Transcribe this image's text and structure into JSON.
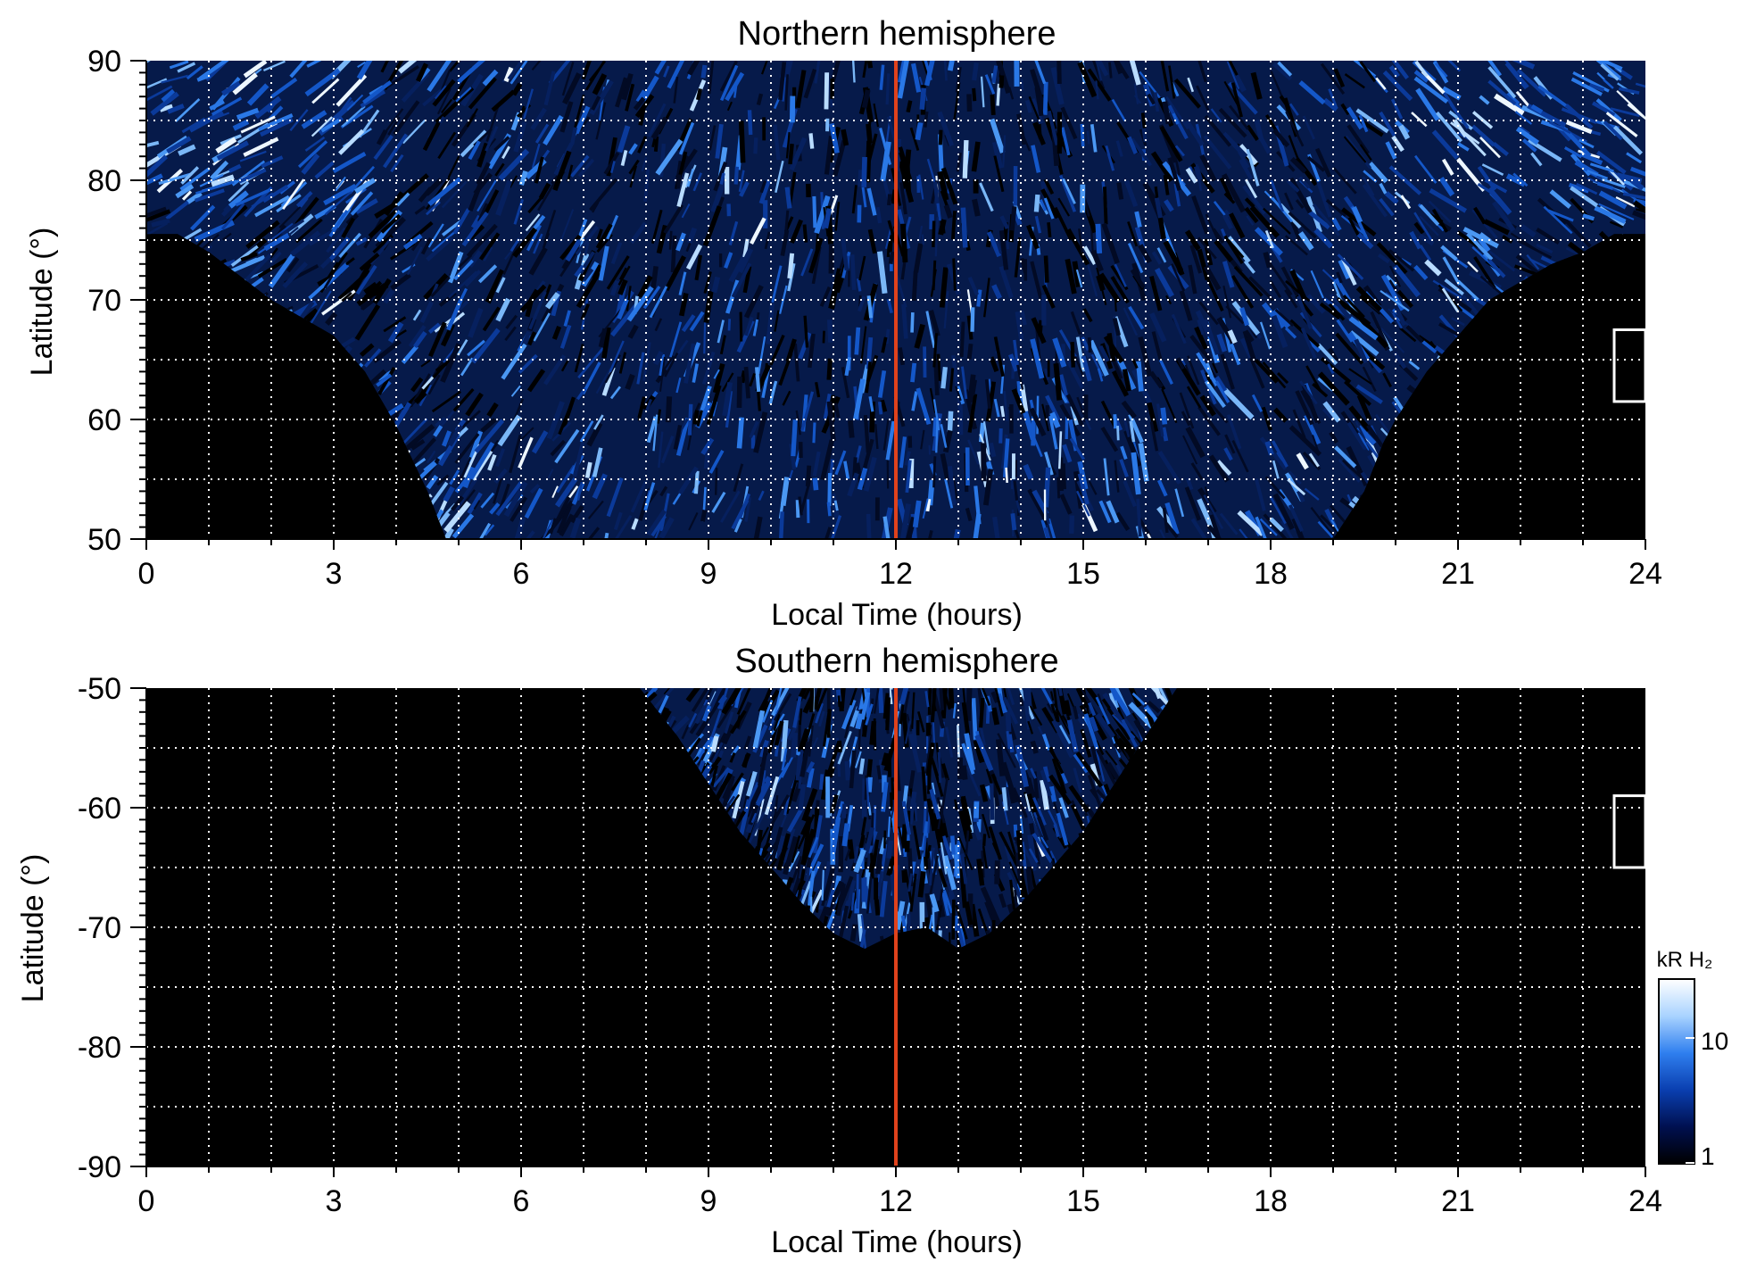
{
  "chart_data": [
    {
      "type": "heatmap",
      "title": "Northern hemisphere",
      "xlabel": "Local Time (hours)",
      "ylabel": "Latitude (°)",
      "xlim": [
        0,
        24
      ],
      "ylim": [
        50,
        90
      ],
      "xticks": [
        0,
        3,
        6,
        9,
        12,
        15,
        18,
        21,
        24
      ],
      "yticks": [
        50,
        60,
        70,
        80,
        90
      ],
      "x_grid": [
        1,
        2,
        3,
        4,
        5,
        6,
        7,
        8,
        9,
        10,
        11,
        12,
        13,
        14,
        15,
        16,
        17,
        18,
        19,
        20,
        21,
        22,
        23
      ],
      "y_grid": [
        55,
        60,
        65,
        70,
        75,
        80,
        85
      ],
      "grid": true,
      "reference_line": {
        "x": 12,
        "color": "#e0421c"
      },
      "coverage_boundary": {
        "lt": [
          0,
          0.5,
          1,
          1.5,
          2,
          2.5,
          3,
          3.5,
          4,
          4.5,
          4.8,
          5,
          6,
          8,
          10,
          12,
          14,
          16,
          18,
          19,
          19.5,
          19.8,
          20,
          20.5,
          21,
          21.5,
          22,
          22.5,
          23,
          23.5,
          24
        ],
        "lat": [
          75.5,
          75.5,
          74,
          72,
          70,
          68.5,
          67,
          64,
          59.5,
          54,
          50,
          50,
          50,
          50,
          50,
          50,
          50,
          50,
          50,
          50,
          54,
          58,
          60,
          64,
          67,
          70,
          71.5,
          73,
          74,
          75.5,
          75.5
        ]
      },
      "bright_region": "high latitudes near 0 and 22-24 LT",
      "marker_box": {
        "x": [
          23.5,
          24
        ],
        "y": [
          61.5,
          67.5
        ]
      }
    },
    {
      "type": "heatmap",
      "title": "Southern hemisphere",
      "xlabel": "Local Time (hours)",
      "ylabel": "Latitude (°)",
      "xlim": [
        0,
        24
      ],
      "ylim": [
        -90,
        -50
      ],
      "xticks": [
        0,
        3,
        6,
        9,
        12,
        15,
        18,
        21,
        24
      ],
      "yticks": [
        -90,
        -80,
        -70,
        -60,
        -50
      ],
      "x_grid": [
        1,
        2,
        3,
        4,
        5,
        6,
        7,
        8,
        9,
        10,
        11,
        12,
        13,
        14,
        15,
        16,
        17,
        18,
        19,
        20,
        21,
        22,
        23
      ],
      "y_grid": [
        -85,
        -80,
        -75,
        -70,
        -65,
        -60,
        -55
      ],
      "grid": true,
      "reference_line": {
        "x": 12,
        "color": "#e0421c"
      },
      "coverage_boundary": {
        "lt": [
          7.9,
          8.5,
          9,
          9.5,
          10,
          10.5,
          11,
          11.5,
          12,
          12.5,
          13,
          13.5,
          14,
          14.5,
          15,
          15.5,
          16,
          16.5
        ],
        "lat": [
          -50,
          -54,
          -58,
          -62,
          -65,
          -68,
          -70.5,
          -71.8,
          -70.5,
          -70,
          -71.8,
          -70.5,
          -68,
          -65,
          -62,
          -58,
          -54,
          -50
        ]
      },
      "marker_box": {
        "x": [
          23.5,
          24
        ],
        "y": [
          -65,
          -59
        ]
      }
    }
  ],
  "colorbar": {
    "label": "kR H₂",
    "ticks": [
      "10",
      "1"
    ],
    "scale": "log",
    "range": [
      1,
      20
    ],
    "colors": [
      "#000000",
      "#001050",
      "#0a3fb0",
      "#2f7fef",
      "#a9d3ff",
      "#ffffff"
    ]
  }
}
